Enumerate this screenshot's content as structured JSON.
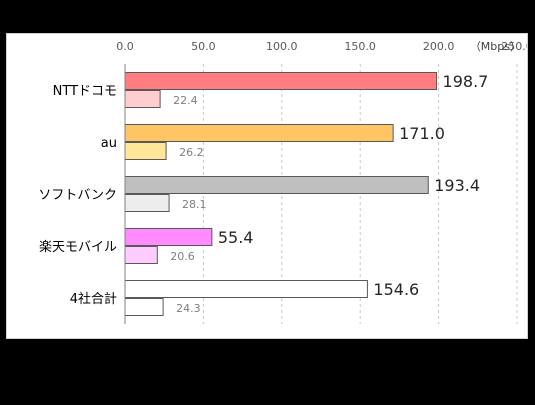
{
  "chart_data": {
    "type": "bar",
    "orientation": "horizontal",
    "unit": "（Mbps）",
    "xlim": [
      0,
      250
    ],
    "ticks": [
      "0.0",
      "50.0",
      "100.0",
      "150.0",
      "200.0",
      "250.0"
    ],
    "grid": true,
    "categories": [
      "NTTドコモ",
      "au",
      "ソフトバンク",
      "楽天モバイル",
      "4社合計"
    ],
    "series": [
      {
        "values": [
          198.7,
          171.0,
          193.4,
          55.4,
          154.6
        ],
        "labels": [
          "198.7",
          "171.0",
          "193.4",
          "55.4",
          "154.6"
        ],
        "colors": [
          "#ff7c80",
          "#ffc565",
          "#bfbfbf",
          "#ff8bff",
          "#ffffff"
        ]
      },
      {
        "values": [
          22.4,
          26.2,
          28.1,
          20.6,
          24.3
        ],
        "labels": [
          "22.4",
          "26.2",
          "28.1",
          "20.6",
          "24.3"
        ],
        "colors": [
          "#ffcccf",
          "#ffe69a",
          "#ededed",
          "#ffccff",
          "#ffffff"
        ]
      }
    ]
  }
}
